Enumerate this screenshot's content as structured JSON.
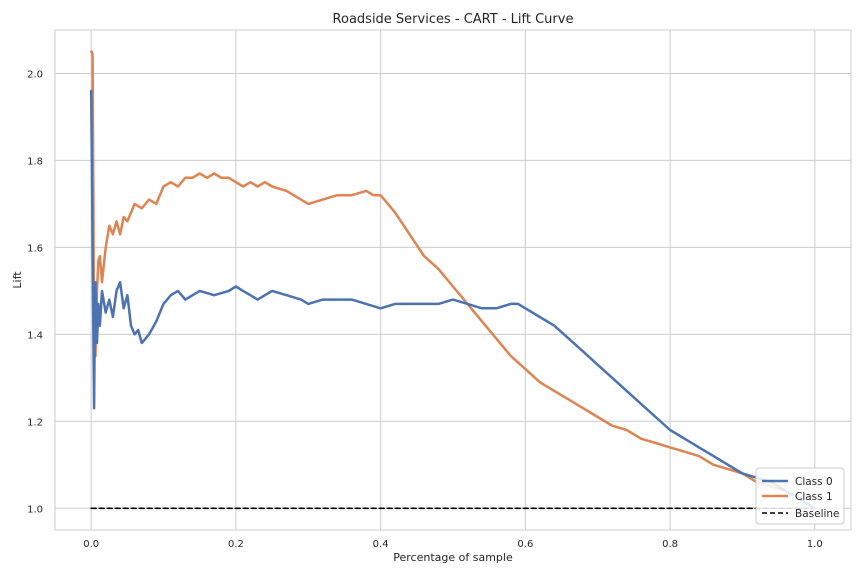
{
  "chart_data": {
    "type": "line",
    "title": "Roadside Services - CART - Lift Curve",
    "xlabel": "Percentage of sample",
    "ylabel": "Lift",
    "xlim": [
      -0.05,
      1.05
    ],
    "ylim": [
      0.95,
      2.1
    ],
    "xticks": [
      0.0,
      0.2,
      0.4,
      0.6,
      0.8,
      1.0
    ],
    "xtick_labels": [
      "0.0",
      "0.2",
      "0.4",
      "0.6",
      "0.8",
      "1.0"
    ],
    "yticks": [
      1.0,
      1.2,
      1.4,
      1.6,
      1.8,
      2.0
    ],
    "ytick_labels": [
      "1.0",
      "1.2",
      "1.4",
      "1.6",
      "1.8",
      "2.0"
    ],
    "grid": true,
    "legend_position": "lower-right",
    "series": [
      {
        "name": "Class 0",
        "color": "#4c72b0",
        "x": [
          0.0,
          0.002,
          0.004,
          0.005,
          0.006,
          0.008,
          0.01,
          0.012,
          0.015,
          0.02,
          0.025,
          0.03,
          0.035,
          0.04,
          0.045,
          0.05,
          0.055,
          0.06,
          0.065,
          0.07,
          0.075,
          0.08,
          0.09,
          0.1,
          0.11,
          0.12,
          0.13,
          0.15,
          0.17,
          0.19,
          0.2,
          0.21,
          0.22,
          0.23,
          0.25,
          0.27,
          0.29,
          0.3,
          0.32,
          0.34,
          0.36,
          0.38,
          0.4,
          0.42,
          0.44,
          0.46,
          0.48,
          0.5,
          0.52,
          0.54,
          0.56,
          0.58,
          0.59,
          0.6,
          0.62,
          0.64,
          0.66,
          0.68,
          0.7,
          0.72,
          0.74,
          0.76,
          0.78,
          0.8,
          0.82,
          0.84,
          0.86,
          0.88,
          0.9,
          0.92,
          0.94,
          0.96,
          0.98,
          1.0
        ],
        "y": [
          1.96,
          1.6,
          1.23,
          1.45,
          1.52,
          1.38,
          1.47,
          1.42,
          1.5,
          1.45,
          1.48,
          1.44,
          1.5,
          1.52,
          1.46,
          1.49,
          1.42,
          1.4,
          1.41,
          1.38,
          1.39,
          1.4,
          1.43,
          1.47,
          1.49,
          1.5,
          1.48,
          1.5,
          1.49,
          1.5,
          1.51,
          1.5,
          1.49,
          1.48,
          1.5,
          1.49,
          1.48,
          1.47,
          1.48,
          1.48,
          1.48,
          1.47,
          1.46,
          1.47,
          1.47,
          1.47,
          1.47,
          1.48,
          1.47,
          1.46,
          1.46,
          1.47,
          1.47,
          1.46,
          1.44,
          1.42,
          1.39,
          1.36,
          1.33,
          1.3,
          1.27,
          1.24,
          1.21,
          1.18,
          1.16,
          1.14,
          1.12,
          1.1,
          1.08,
          1.07,
          1.06,
          1.04,
          1.02,
          1.0
        ]
      },
      {
        "name": "Class 1",
        "color": "#dd8452",
        "x": [
          0.0,
          0.001,
          0.002,
          0.003,
          0.004,
          0.005,
          0.006,
          0.008,
          0.01,
          0.012,
          0.015,
          0.02,
          0.025,
          0.03,
          0.035,
          0.04,
          0.045,
          0.05,
          0.06,
          0.07,
          0.08,
          0.09,
          0.1,
          0.11,
          0.12,
          0.13,
          0.14,
          0.15,
          0.16,
          0.17,
          0.18,
          0.19,
          0.2,
          0.21,
          0.22,
          0.23,
          0.24,
          0.25,
          0.27,
          0.29,
          0.3,
          0.32,
          0.34,
          0.36,
          0.38,
          0.39,
          0.4,
          0.42,
          0.44,
          0.46,
          0.48,
          0.5,
          0.52,
          0.54,
          0.56,
          0.58,
          0.6,
          0.62,
          0.64,
          0.66,
          0.68,
          0.7,
          0.72,
          0.74,
          0.76,
          0.78,
          0.8,
          0.82,
          0.84,
          0.86,
          0.88,
          0.9,
          0.92,
          0.94,
          0.96,
          0.98,
          1.0
        ],
        "y": [
          2.05,
          2.05,
          2.04,
          1.7,
          1.3,
          1.42,
          1.35,
          1.5,
          1.57,
          1.58,
          1.52,
          1.6,
          1.65,
          1.63,
          1.66,
          1.63,
          1.67,
          1.66,
          1.7,
          1.69,
          1.71,
          1.7,
          1.74,
          1.75,
          1.74,
          1.76,
          1.76,
          1.77,
          1.76,
          1.77,
          1.76,
          1.76,
          1.75,
          1.74,
          1.75,
          1.74,
          1.75,
          1.74,
          1.73,
          1.71,
          1.7,
          1.71,
          1.72,
          1.72,
          1.73,
          1.72,
          1.72,
          1.68,
          1.63,
          1.58,
          1.55,
          1.51,
          1.47,
          1.43,
          1.39,
          1.35,
          1.32,
          1.29,
          1.27,
          1.25,
          1.23,
          1.21,
          1.19,
          1.18,
          1.16,
          1.15,
          1.14,
          1.13,
          1.12,
          1.1,
          1.09,
          1.08,
          1.06,
          1.05,
          1.04,
          1.02,
          1.0
        ]
      },
      {
        "name": "Baseline",
        "color": "#000000",
        "dashed": true,
        "x": [
          0.0,
          1.0
        ],
        "y": [
          1.0,
          1.0
        ]
      }
    ]
  }
}
